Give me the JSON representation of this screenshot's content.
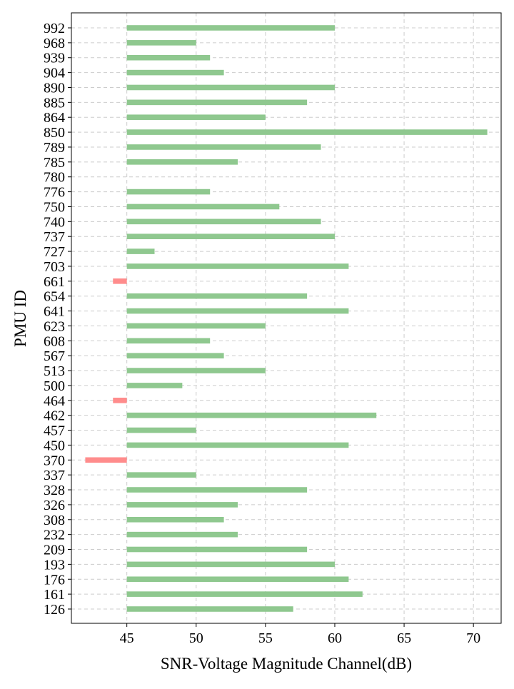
{
  "chart_data": {
    "type": "bar",
    "orientation": "horizontal",
    "baseline": 45,
    "xlabel": "SNR-Voltage Magnitude Channel(dB)",
    "ylabel": "PMU ID",
    "xlim": [
      41,
      72
    ],
    "xticks": [
      45,
      50,
      55,
      60,
      65,
      70
    ],
    "grid": true,
    "colors": {
      "above": "#8fc88f",
      "below": "#ff8c8c",
      "grid": "#cccccc"
    },
    "categories": [
      "126",
      "161",
      "176",
      "193",
      "209",
      "232",
      "308",
      "326",
      "328",
      "337",
      "370",
      "450",
      "457",
      "462",
      "464",
      "500",
      "513",
      "567",
      "608",
      "623",
      "641",
      "654",
      "661",
      "703",
      "727",
      "737",
      "740",
      "750",
      "776",
      "780",
      "785",
      "789",
      "850",
      "864",
      "885",
      "890",
      "904",
      "939",
      "968",
      "992"
    ],
    "values": [
      57,
      62,
      61,
      60,
      58,
      53,
      52,
      53,
      58,
      50,
      42,
      61,
      50,
      63,
      44,
      49,
      55,
      52,
      51,
      55,
      61,
      58,
      44,
      61,
      47,
      60,
      59,
      56,
      51,
      45,
      53,
      59,
      71,
      55,
      58,
      60,
      52,
      51,
      50,
      60
    ]
  }
}
